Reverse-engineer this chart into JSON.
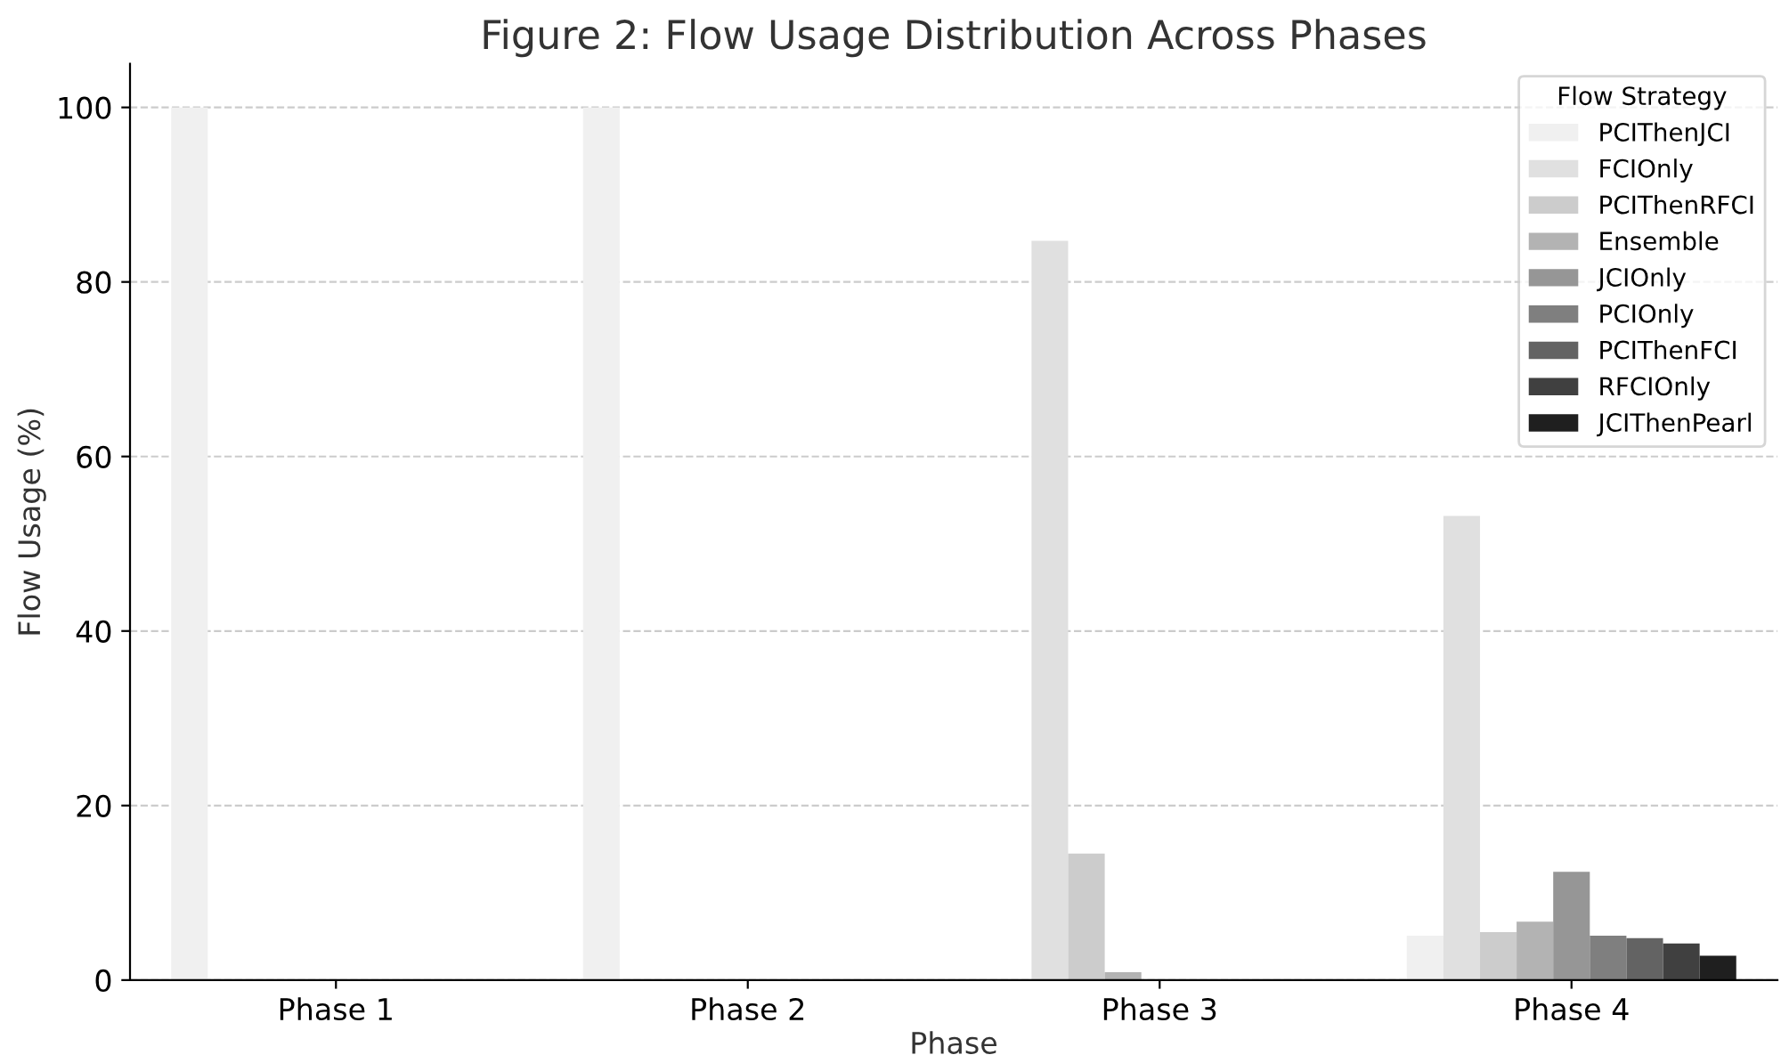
{
  "chart_data": {
    "type": "bar",
    "title": "Figure 2: Flow Usage Distribution Across Phases",
    "xlabel": "Phase",
    "ylabel": "Flow Usage (%)",
    "legend_title": "Flow Strategy",
    "legend": "top right",
    "grid": "y",
    "categories": [
      "Phase 1",
      "Phase 2",
      "Phase 3",
      "Phase 4"
    ],
    "ylim": [
      0,
      105
    ],
    "yticks": [
      0,
      20,
      40,
      60,
      80,
      100
    ],
    "series": [
      {
        "name": "PCIThenJCI",
        "color": "#f0f0f0",
        "values": [
          100,
          100,
          0,
          5.1
        ]
      },
      {
        "name": "FCIOnly",
        "color": "#e0e0e0",
        "values": [
          0,
          0,
          84.7,
          53.2
        ]
      },
      {
        "name": "PCIThenRFCI",
        "color": "#cccccc",
        "values": [
          0,
          0,
          14.5,
          5.5
        ]
      },
      {
        "name": "Ensemble",
        "color": "#b3b3b3",
        "values": [
          0,
          0,
          0.9,
          6.7
        ]
      },
      {
        "name": "JCIOnly",
        "color": "#969696",
        "values": [
          0,
          0,
          0,
          12.4
        ]
      },
      {
        "name": "PCIOnly",
        "color": "#7f7f7f",
        "values": [
          0,
          0,
          0,
          5.1
        ]
      },
      {
        "name": "PCIThenFCI",
        "color": "#636363",
        "values": [
          0,
          0,
          0,
          4.8
        ]
      },
      {
        "name": "RFCIOnly",
        "color": "#404040",
        "values": [
          0,
          0,
          0,
          4.2
        ]
      },
      {
        "name": "JCIThenPearl",
        "color": "#1f1f1f",
        "values": [
          0,
          0,
          0,
          2.8
        ]
      }
    ]
  }
}
